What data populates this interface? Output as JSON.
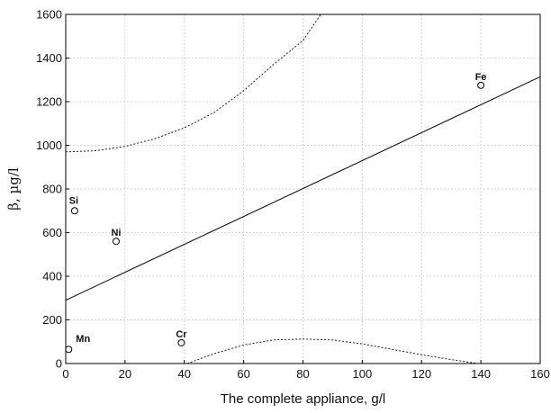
{
  "chart_data": {
    "type": "scatter",
    "xlabel": "The complete appliance, g/l",
    "ylabel": "β, µg/l",
    "xlim": [
      0,
      160
    ],
    "ylim": [
      0,
      1600
    ],
    "xticks": [
      "0",
      "20",
      "40",
      "60",
      "80",
      "100",
      "120",
      "140",
      "160"
    ],
    "yticks": [
      "0",
      "200",
      "400",
      "600",
      "800",
      "1000",
      "1200",
      "1400",
      "1600"
    ],
    "grid": true,
    "points": [
      {
        "label": "Fe",
        "x": 140,
        "y": 1275
      },
      {
        "label": "Si",
        "x": 3,
        "y": 700
      },
      {
        "label": "Ni",
        "x": 17,
        "y": 560
      },
      {
        "label": "Cr",
        "x": 39,
        "y": 95
      },
      {
        "label": "Mn",
        "x": 1,
        "y": 65
      }
    ],
    "regression_line": {
      "intercept": 290,
      "slope": 6.4
    },
    "confidence_band": {
      "upper": [
        [
          0,
          970
        ],
        [
          10,
          975
        ],
        [
          20,
          995
        ],
        [
          30,
          1030
        ],
        [
          40,
          1080
        ],
        [
          50,
          1150
        ],
        [
          60,
          1250
        ],
        [
          70,
          1370
        ],
        [
          80,
          1480
        ],
        [
          86,
          1600
        ]
      ],
      "lower": [
        [
          41,
          0
        ],
        [
          50,
          45
        ],
        [
          60,
          85
        ],
        [
          70,
          108
        ],
        [
          80,
          112
        ],
        [
          90,
          108
        ],
        [
          100,
          90
        ],
        [
          110,
          65
        ],
        [
          120,
          40
        ],
        [
          130,
          18
        ],
        [
          139,
          0
        ]
      ]
    }
  }
}
